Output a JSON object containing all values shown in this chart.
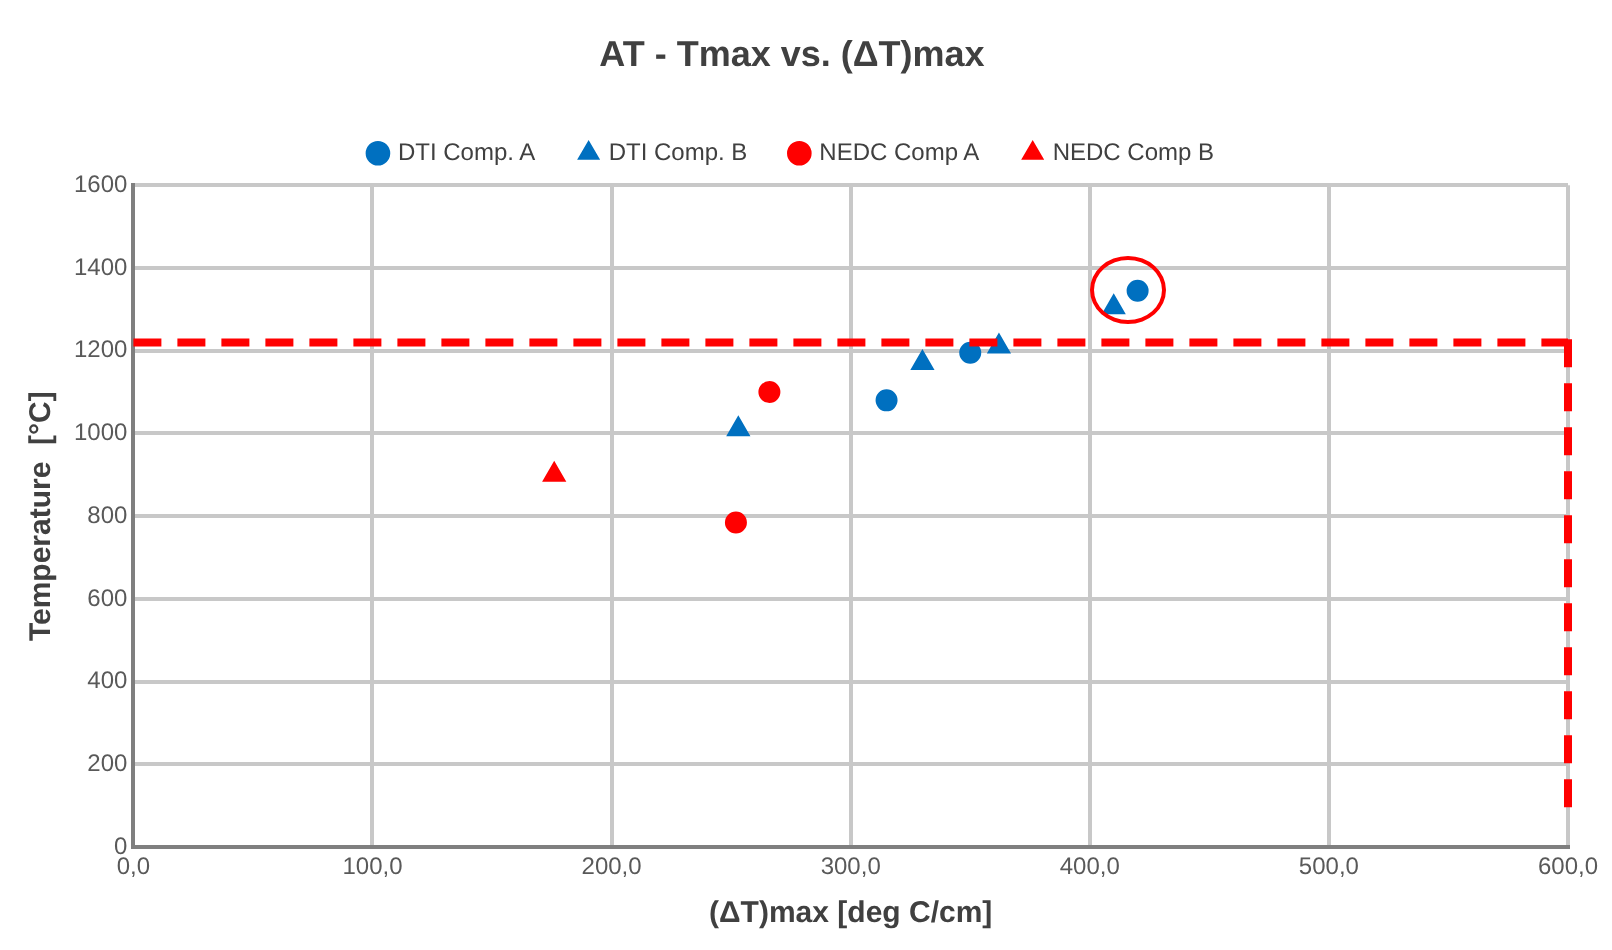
{
  "chart_data": {
    "type": "scatter",
    "title": "AT - Tmax vs. (ΔT)max",
    "xlabel": "(ΔT)max [deg C/cm]",
    "ylabel": "Temperature  [°C]",
    "series": [
      {
        "name": "DTI Comp. A",
        "color": "#0070c0",
        "marker": "circle",
        "x": [
          315,
          350,
          420
        ],
        "values": [
          1080,
          1195,
          1345
        ]
      },
      {
        "name": "DTI Comp. B",
        "color": "#0070c0",
        "marker": "triangle",
        "x": [
          253,
          330,
          362,
          410
        ],
        "values": [
          1010,
          1170,
          1210,
          1305
        ]
      },
      {
        "name": "NEDC Comp A",
        "color": "#ff0000",
        "marker": "circle",
        "x": [
          252,
          266
        ],
        "values": [
          785,
          1100
        ]
      },
      {
        "name": "NEDC Comp B",
        "color": "#ff0000",
        "marker": "triangle",
        "x": [
          176
        ],
        "values": [
          900
        ]
      }
    ],
    "xlim": [
      0,
      600
    ],
    "xticks": [
      {
        "value": 0,
        "label": "0,0"
      },
      {
        "value": 100,
        "label": "100,0"
      },
      {
        "value": 200,
        "label": "200,0"
      },
      {
        "value": 300,
        "label": "300,0"
      },
      {
        "value": 400,
        "label": "400,0"
      },
      {
        "value": 500,
        "label": "500,0"
      },
      {
        "value": 600,
        "label": "600,0"
      }
    ],
    "ylim": [
      0,
      1600
    ],
    "yticks": [
      0,
      200,
      400,
      600,
      800,
      1000,
      1200,
      1400,
      1600
    ],
    "ref_lines": [
      {
        "axis": "y",
        "value": 1220,
        "color": "#ff0000",
        "line_style": "dashed"
      },
      {
        "axis": "x",
        "value": 600,
        "color": "#ff0000",
        "line_style": "dashed"
      }
    ],
    "grid": true,
    "legend": "top"
  }
}
